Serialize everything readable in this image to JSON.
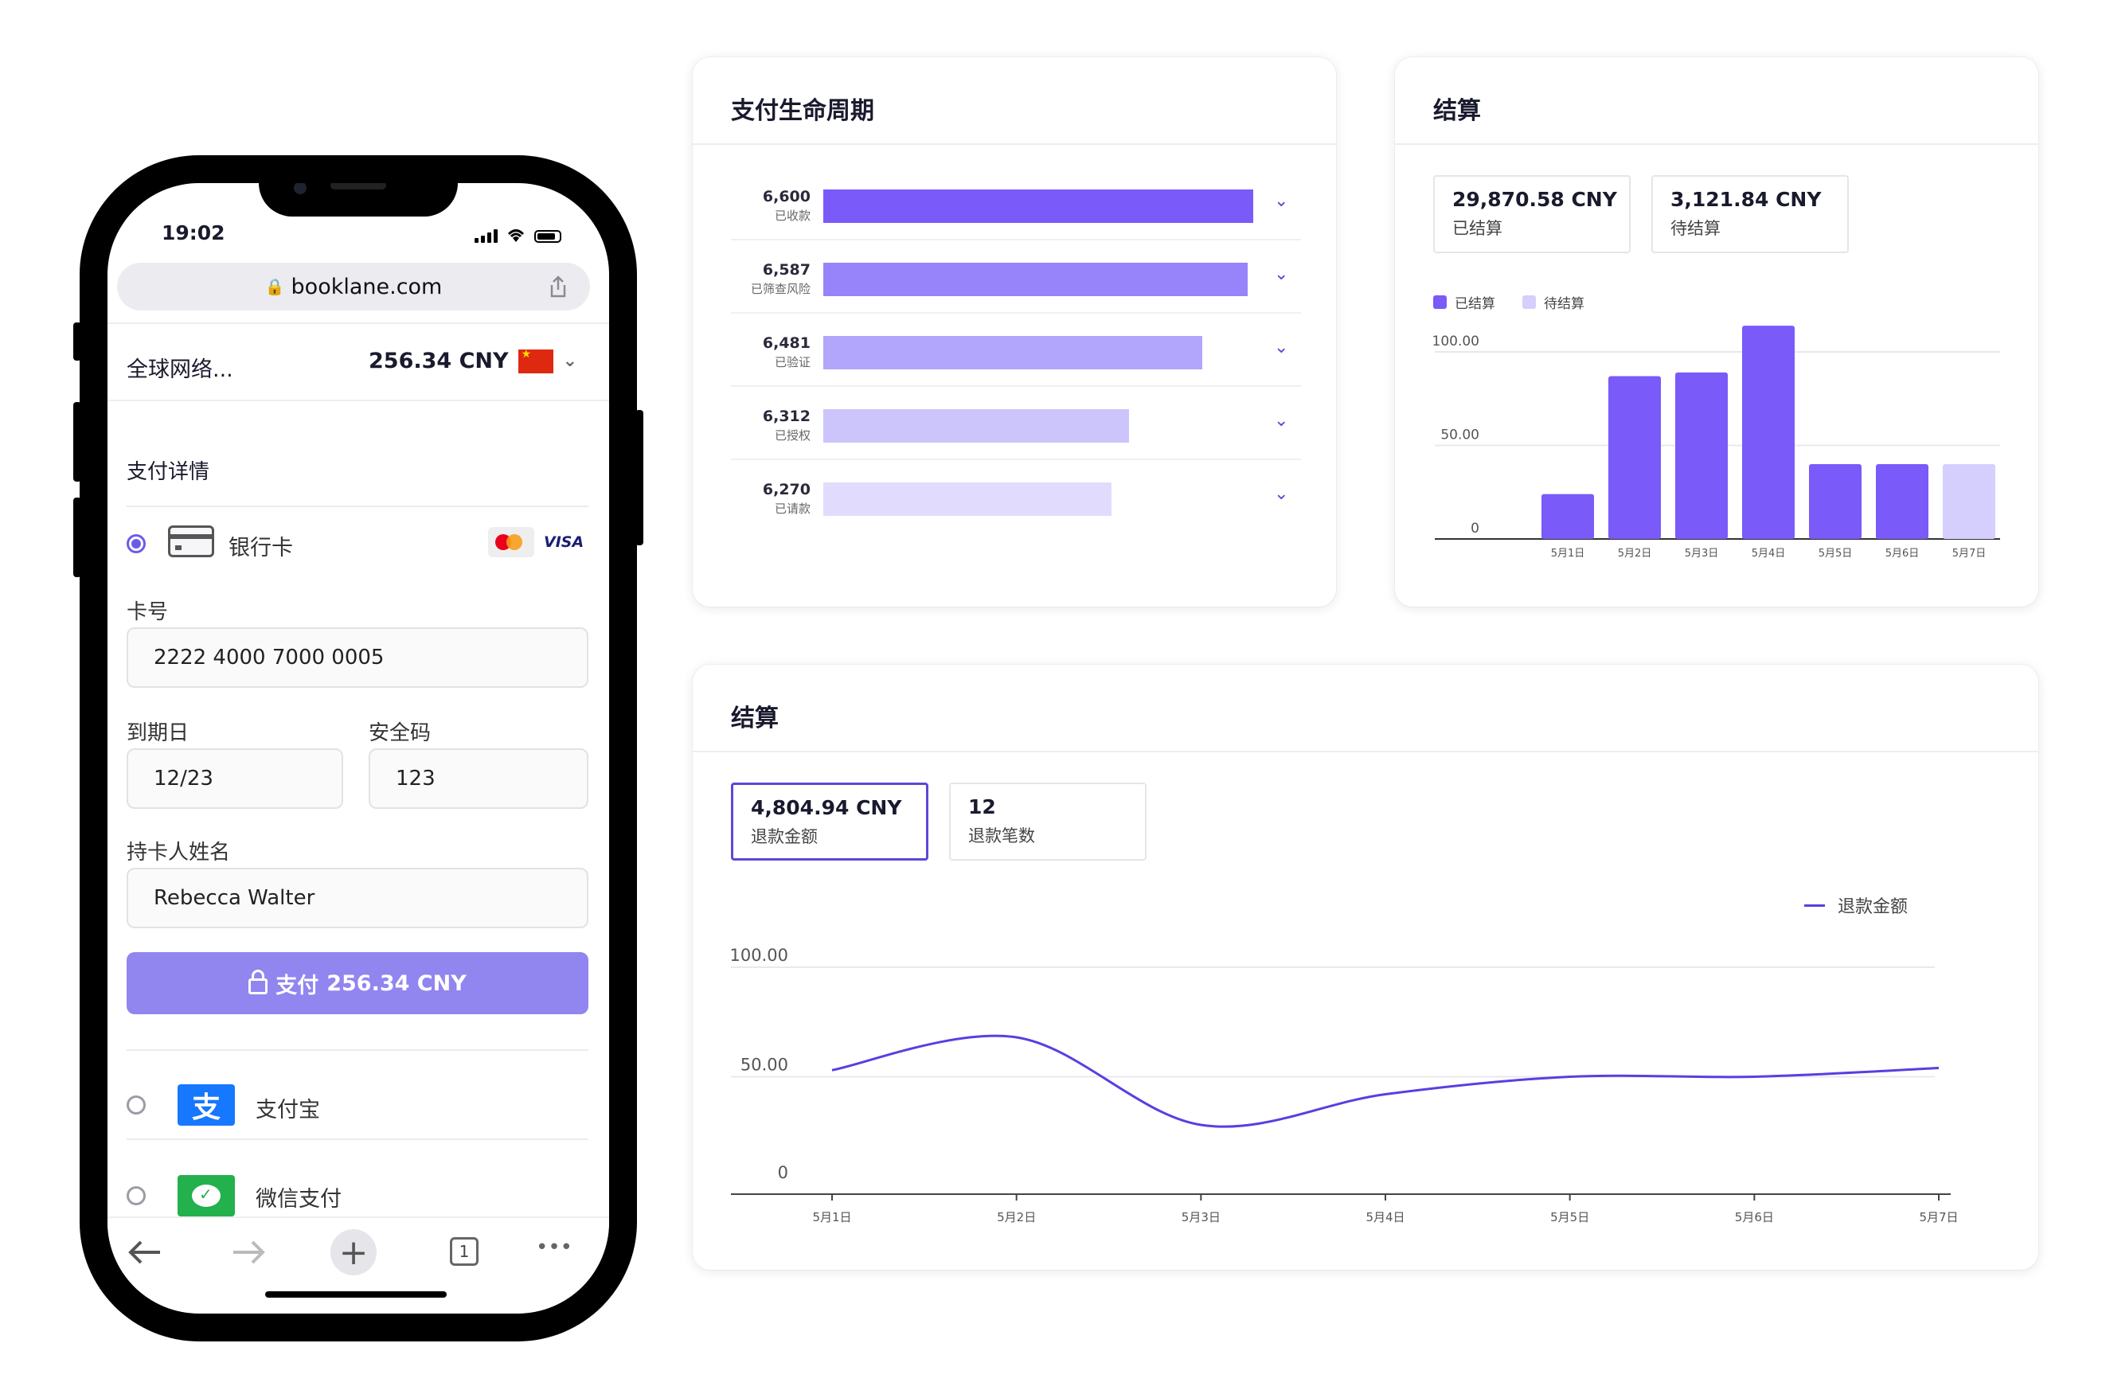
{
  "phone": {
    "status_time": "19:02",
    "url": "booklane.com",
    "merchant": "全球网络...",
    "amount": "256.34 CNY",
    "section_title": "支付详情",
    "bank_card_label": "银行卡",
    "visa_label": "VISA",
    "card_number_label": "卡号",
    "card_number_value": "2222 4000 7000 0005",
    "expiry_label": "到期日",
    "expiry_value": "12/23",
    "cvc_label": "安全码",
    "cvc_value": "123",
    "holder_label": "持卡人姓名",
    "holder_value": "Rebecca Walter",
    "pay_label": "支付",
    "pay_amount": "256.34 CNY",
    "alipay_label": "支付宝",
    "alipay_glyph": "支",
    "wechat_label": "微信支付",
    "tabs_count": "1",
    "more_glyph": "•••"
  },
  "lifecycle": {
    "title": "支付生命周期",
    "chart_data": {
      "type": "bar",
      "orientation": "horizontal",
      "categories": [
        "已收款",
        "已筛查风险",
        "已验证",
        "已授权",
        "已请款"
      ],
      "values": [
        6600,
        6587,
        6481,
        6312,
        6270
      ],
      "value_labels": [
        "6,600",
        "6,587",
        "6,481",
        "6,312",
        "6,270"
      ],
      "colors": [
        "#7a5af8",
        "#9783fa",
        "#b1a6fb",
        "#ccc5fc",
        "#e1dcfd"
      ]
    }
  },
  "settlement": {
    "title": "结算",
    "stats": [
      {
        "value": "29,870.58 CNY",
        "label": "已结算"
      },
      {
        "value": "3,121.84 CNY",
        "label": "待结算"
      }
    ],
    "legend": [
      {
        "label": "已结算",
        "color": "#7a5af8"
      },
      {
        "label": "待结算",
        "color": "#d4cffc"
      }
    ],
    "chart_data": {
      "type": "bar",
      "categories": [
        "5月1日",
        "5月2日",
        "5月3日",
        "5月4日",
        "5月5日",
        "5月6日",
        "5月7日"
      ],
      "series": [
        {
          "name": "已结算",
          "values": [
            24,
            87,
            89,
            114,
            40,
            40,
            0
          ]
        },
        {
          "name": "待结算",
          "values": [
            0,
            0,
            0,
            0,
            0,
            0,
            40
          ]
        }
      ],
      "yticks": [
        "0",
        "50.00",
        "100.00"
      ],
      "ylim": [
        0,
        120
      ]
    }
  },
  "refund": {
    "title": "结算",
    "stats": [
      {
        "value": "4,804.94 CNY",
        "label": "退款金额"
      },
      {
        "value": "12",
        "label": "退款笔数"
      }
    ],
    "legend_label": "退款金额",
    "chart_data": {
      "type": "line",
      "x": [
        "5月1日",
        "5月2日",
        "5月3日",
        "5月4日",
        "5月5日",
        "5月6日",
        "5月7日"
      ],
      "series": [
        {
          "name": "退款金额",
          "values": [
            53,
            68,
            28,
            42,
            50,
            50,
            54
          ]
        }
      ],
      "yticks": [
        "0",
        "50.00",
        "100.00"
      ],
      "ylim": [
        0,
        100
      ]
    }
  }
}
